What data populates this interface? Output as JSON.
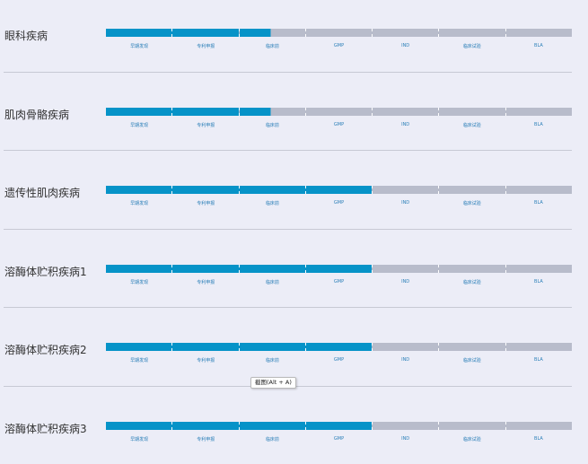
{
  "stages": [
    "早期发现",
    "专利申报",
    "临床前",
    "GMP",
    "IND",
    "临床试验",
    "BLA"
  ],
  "colors": {
    "filled": "#0693C8",
    "unfilled": "#B8BCCB",
    "background": "#ECEDF7",
    "stage_label": "#2A7FB8"
  },
  "diseases": [
    {
      "name": "眼科疾病",
      "progress_stages": 2.5
    },
    {
      "name": "肌肉骨骼疾病",
      "progress_stages": 2.5
    },
    {
      "name": "遗传性肌肉疾病",
      "progress_stages": 4
    },
    {
      "name": "溶酶体贮积疾病1",
      "progress_stages": 4
    },
    {
      "name": "溶酶体贮积疾病2",
      "progress_stages": 4
    },
    {
      "name": "溶酶体贮积疾病3",
      "progress_stages": 4
    }
  ],
  "tooltip": {
    "text": "截图(Alt + A)"
  }
}
